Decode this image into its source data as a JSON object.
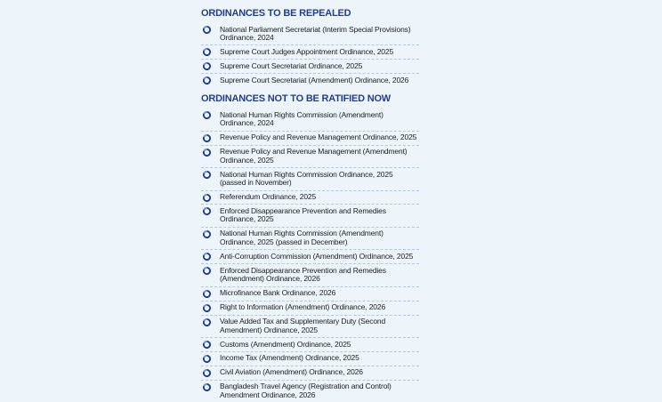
{
  "page": {
    "background_color": "#edf5fb",
    "title_color": "#1d3e96",
    "text_color": "#20202b",
    "divider_color": "#b5c7db",
    "icon_dark_color": "#1e3a8c",
    "icon_light_color": "#5a93d8"
  },
  "sections": [
    {
      "title": "ORDINANCES TO BE REPEALED",
      "items": [
        "National Parliament Secretariat (Interim Special Provisions) Ordinance, 2024",
        "Supreme Court Judges Appointment Ordinance, 2025",
        "Supreme Court Secretariat Ordinance, 2025",
        "Supreme Court Secretariat (Amendment) Ordinance, 2026"
      ]
    },
    {
      "title": "ORDINANCES NOT TO BE RATIFIED NOW",
      "items": [
        "National Human Rights Commission (Amendment) Ordinance, 2024",
        "Revenue Policy and Revenue Management Ordinance, 2025",
        "Revenue Policy and Revenue Management (Amendment) Ordinance, 2025",
        "National Human Rights Commission Ordinance, 2025 (passed in November)",
        "Referendum Ordinance, 2025",
        "Enforced Disappearance Prevention and Remedies Ordinance, 2025",
        "National Human Rights Commission (Amendment) Ordinance, 2025 (passed in December)",
        "Anti-Corruption Commission (Amendment) Ordinance, 2025",
        "Enforced Disappearance Prevention and Remedies (Amendment) Ordinance, 2026",
        "Microfinance Bank Ordinance, 2026",
        "Right to Information (Amendment) Ordinance, 2026",
        "Value Added Tax and Supplementary Duty (Second Amendment) Ordinance, 2025",
        "Customs (Amendment) Ordinance, 2025",
        "Income Tax (Amendment) Ordinance, 2025",
        "Civil Aviation (Amendment) Ordinance, 2026",
        "Bangladesh Travel Agency (Registration and Control) Amendment Ordinance, 2026"
      ]
    }
  ]
}
